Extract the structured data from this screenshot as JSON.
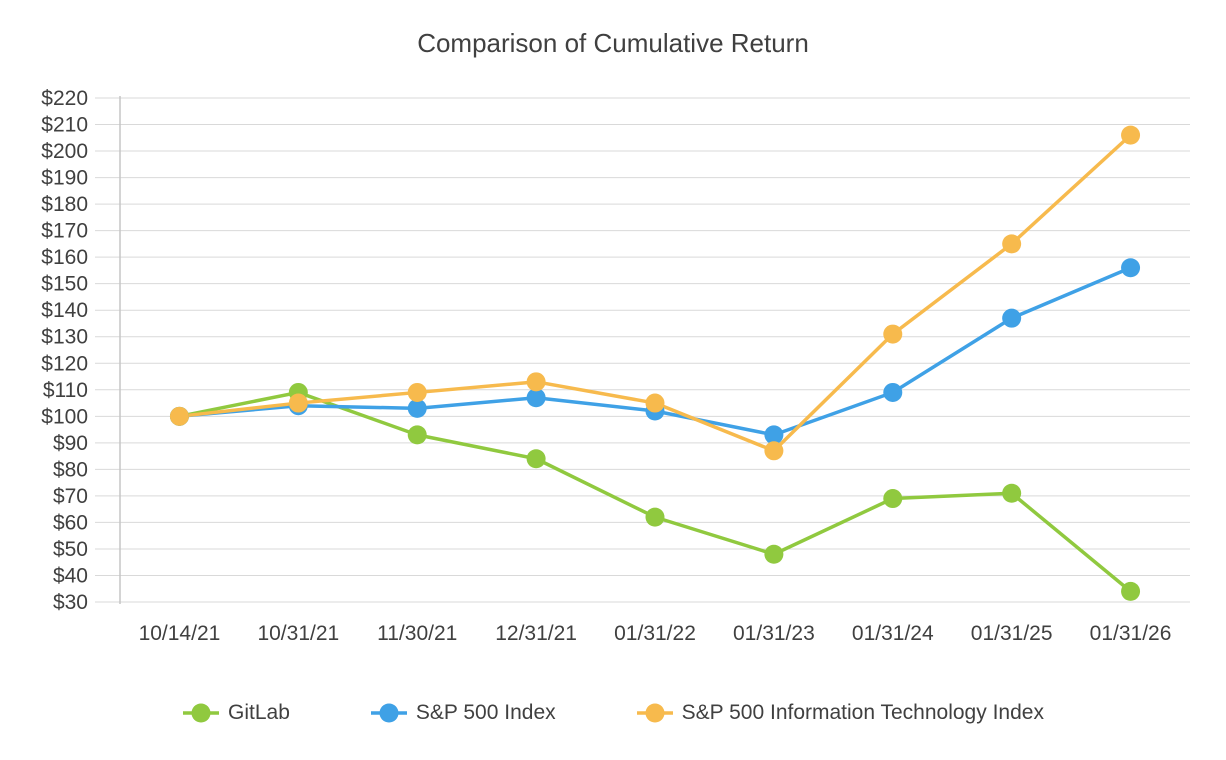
{
  "chart_data": {
    "type": "line",
    "title": "Comparison of Cumulative Return",
    "categories": [
      "10/14/21",
      "10/31/21",
      "11/30/21",
      "12/31/21",
      "01/31/22",
      "01/31/23",
      "01/31/24",
      "01/31/25",
      "01/31/26"
    ],
    "series": [
      {
        "name": "GitLab",
        "color": "#90C93F",
        "values": [
          100,
          109,
          93,
          84,
          62,
          48,
          69,
          71,
          34
        ]
      },
      {
        "name": "S&P 500 Index",
        "color": "#3FA1E6",
        "values": [
          100,
          104,
          103,
          107,
          102,
          93,
          109,
          137,
          156
        ]
      },
      {
        "name": "S&P 500 Information Technology Index",
        "color": "#F7BA4D",
        "values": [
          100,
          105,
          109,
          113,
          105,
          87,
          131,
          165,
          206
        ]
      }
    ],
    "ylim": [
      30,
      220
    ],
    "ytick_step": 10,
    "ytick_prefix": "$",
    "grid": true,
    "legend_position": "bottom",
    "gridline_color": "#D9D9D9",
    "axis_line_color": "#C6C6C6",
    "text_color": "#404040"
  }
}
